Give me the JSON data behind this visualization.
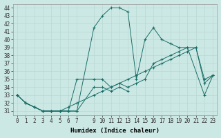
{
  "xlabel": "Humidex (Indice chaleur)",
  "bg_color": "#cce8e4",
  "line_color": "#1a6e68",
  "grid_color": "#b8d8d4",
  "xlim": [
    -0.5,
    23.5
  ],
  "ylim": [
    30.5,
    44.5
  ],
  "xticks": [
    0,
    1,
    2,
    3,
    4,
    5,
    6,
    7,
    9,
    10,
    11,
    12,
    13,
    14,
    15,
    16,
    17,
    18,
    19,
    20,
    21,
    22,
    23
  ],
  "yticks": [
    31,
    32,
    33,
    34,
    35,
    36,
    37,
    38,
    39,
    40,
    41,
    42,
    43,
    44
  ],
  "line1_x": [
    0,
    1,
    2,
    3,
    4,
    5,
    6,
    7,
    9,
    10,
    11,
    12,
    13,
    14,
    15,
    16,
    17,
    18,
    19,
    20,
    22,
    23
  ],
  "line1_y": [
    33,
    32,
    31.5,
    31,
    31,
    31,
    31,
    31,
    41.5,
    43,
    44,
    44,
    43.5,
    35,
    40,
    41.5,
    40,
    39.5,
    39,
    39,
    33,
    35.5
  ],
  "line2_x": [
    0,
    1,
    2,
    3,
    4,
    5,
    6,
    7,
    9,
    10,
    11,
    12,
    13,
    14,
    15,
    16,
    17,
    18,
    19,
    20,
    21,
    22,
    23
  ],
  "line2_y": [
    33,
    32,
    31.5,
    31,
    31,
    31,
    31,
    35,
    35,
    35,
    34,
    34.5,
    34,
    34.5,
    35,
    37,
    37.5,
    38,
    38.5,
    39,
    39,
    35,
    35.5
  ],
  "line3_x": [
    0,
    1,
    2,
    3,
    4,
    5,
    6,
    7,
    9,
    10,
    11,
    12,
    13,
    14,
    15,
    16,
    17,
    18,
    19,
    20,
    21,
    22,
    23
  ],
  "line3_y": [
    33,
    32,
    31.5,
    31,
    31,
    31,
    31.5,
    32,
    33,
    33.5,
    34,
    34.5,
    35,
    35.5,
    36,
    36.5,
    37,
    37.5,
    38,
    38.5,
    39,
    34.5,
    35.5
  ],
  "line4_x": [
    0,
    1,
    2,
    3,
    4,
    5,
    6,
    7,
    9,
    10,
    11,
    12,
    13
  ],
  "line4_y": [
    33,
    32,
    31.5,
    31,
    31,
    31,
    31,
    31,
    34,
    34,
    33.5,
    34,
    33.5
  ]
}
